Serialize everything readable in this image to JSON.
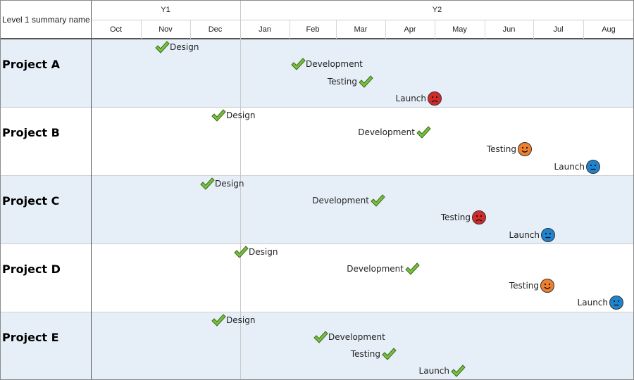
{
  "header": {
    "corner_label": "Level 1 summary name",
    "years": [
      {
        "label": "Y1"
      },
      {
        "label": "Y2"
      }
    ],
    "months": [
      "Oct",
      "Nov",
      "Dec",
      "Jan",
      "Feb",
      "Mar",
      "Apr",
      "May",
      "Jun",
      "Jul",
      "Aug"
    ]
  },
  "projects": [
    {
      "name": "Project A",
      "milestones": [
        {
          "label": "Design",
          "status": "done"
        },
        {
          "label": "Development",
          "status": "done"
        },
        {
          "label": "Testing",
          "status": "done"
        },
        {
          "label": "Launch",
          "status": "sad"
        }
      ]
    },
    {
      "name": "Project B",
      "milestones": [
        {
          "label": "Design",
          "status": "done"
        },
        {
          "label": "Development",
          "status": "done"
        },
        {
          "label": "Testing",
          "status": "happy"
        },
        {
          "label": "Launch",
          "status": "neutral"
        }
      ]
    },
    {
      "name": "Project C",
      "milestones": [
        {
          "label": "Design",
          "status": "done"
        },
        {
          "label": "Development",
          "status": "done"
        },
        {
          "label": "Testing",
          "status": "sad"
        },
        {
          "label": "Launch",
          "status": "neutral"
        }
      ]
    },
    {
      "name": "Project D",
      "milestones": [
        {
          "label": "Design",
          "status": "done"
        },
        {
          "label": "Development",
          "status": "done"
        },
        {
          "label": "Testing",
          "status": "happy"
        },
        {
          "label": "Launch",
          "status": "neutral"
        }
      ]
    },
    {
      "name": "Project E",
      "milestones": [
        {
          "label": "Design",
          "status": "done"
        },
        {
          "label": "Development",
          "status": "done"
        },
        {
          "label": "Testing",
          "status": "done"
        },
        {
          "label": "Launch",
          "status": "done"
        }
      ]
    }
  ],
  "colors": {
    "band": "#e6eff8",
    "check": "#7bbf3f",
    "sad": "#d32a2a",
    "happy": "#ef7f2f",
    "neutral": "#1f84cf"
  }
}
